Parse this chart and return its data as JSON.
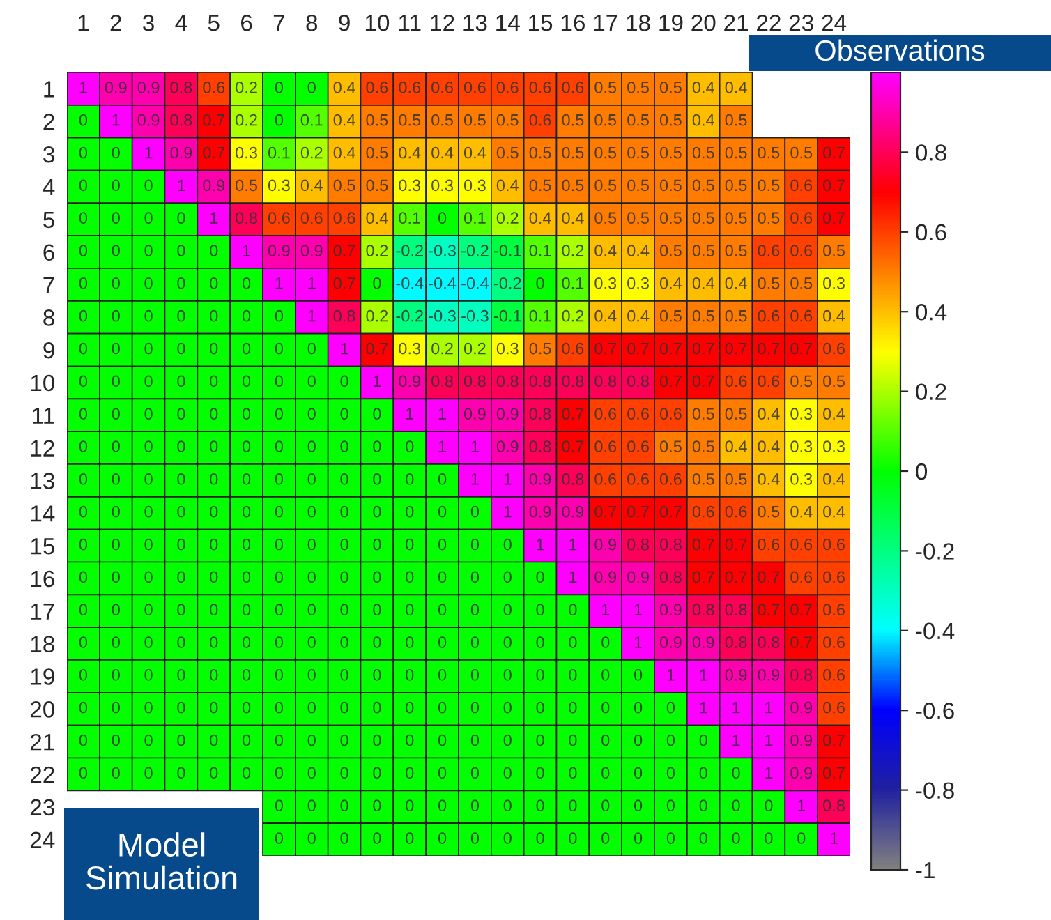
{
  "chart_data": {
    "type": "heatmap",
    "categories": [
      "1",
      "2",
      "3",
      "4",
      "5",
      "6",
      "7",
      "8",
      "9",
      "10",
      "11",
      "12",
      "13",
      "14",
      "15",
      "16",
      "17",
      "18",
      "19",
      "20",
      "21",
      "22",
      "23",
      "24"
    ],
    "y_categories": [
      "1",
      "2",
      "3",
      "4",
      "5",
      "6",
      "7",
      "8",
      "9",
      "10",
      "11",
      "12",
      "13",
      "14",
      "15",
      "16",
      "17",
      "18",
      "19",
      "20",
      "21",
      "22",
      "23",
      "24"
    ],
    "cells": [
      [
        1,
        0.9,
        0.9,
        0.8,
        0.6,
        0.2,
        0,
        0,
        0.4,
        0.6,
        0.6,
        0.6,
        0.6,
        0.6,
        0.6,
        0.6,
        0.5,
        0.5,
        0.5,
        0.4,
        0.4,
        null,
        null,
        null
      ],
      [
        0,
        1,
        0.9,
        0.8,
        0.7,
        0.2,
        0,
        0.1,
        0.4,
        0.5,
        0.5,
        0.5,
        0.5,
        0.5,
        0.6,
        0.5,
        0.5,
        0.5,
        0.5,
        0.4,
        0.5,
        null,
        null,
        null
      ],
      [
        0,
        0,
        1,
        0.9,
        0.7,
        0.3,
        0.1,
        0.2,
        0.4,
        0.5,
        0.4,
        0.4,
        0.4,
        0.5,
        0.5,
        0.5,
        0.5,
        0.5,
        0.5,
        0.5,
        0.5,
        0.5,
        0.5,
        0.7
      ],
      [
        0,
        0,
        0,
        1,
        0.9,
        0.5,
        0.3,
        0.4,
        0.5,
        0.5,
        0.3,
        0.3,
        0.3,
        0.4,
        0.5,
        0.5,
        0.5,
        0.5,
        0.5,
        0.5,
        0.5,
        0.5,
        0.6,
        0.7
      ],
      [
        0,
        0,
        0,
        0,
        1,
        0.8,
        0.6,
        0.6,
        0.6,
        0.4,
        0.1,
        0,
        0.1,
        0.2,
        0.4,
        0.4,
        0.5,
        0.5,
        0.5,
        0.5,
        0.5,
        0.5,
        0.6,
        0.7
      ],
      [
        0,
        0,
        0,
        0,
        0,
        1,
        0.9,
        0.9,
        0.7,
        0.2,
        -0.2,
        -0.3,
        -0.2,
        -0.1,
        0.1,
        0.2,
        0.4,
        0.4,
        0.5,
        0.5,
        0.5,
        0.6,
        0.6,
        0.5
      ],
      [
        0,
        0,
        0,
        0,
        0,
        0,
        1,
        1,
        0.7,
        0,
        -0.4,
        -0.4,
        -0.4,
        -0.2,
        0,
        0.1,
        0.3,
        0.3,
        0.4,
        0.4,
        0.4,
        0.5,
        0.5,
        0.3
      ],
      [
        0,
        0,
        0,
        0,
        0,
        0,
        0,
        1,
        0.8,
        0.2,
        -0.2,
        -0.3,
        -0.3,
        -0.1,
        0.1,
        0.2,
        0.4,
        0.4,
        0.5,
        0.5,
        0.5,
        0.6,
        0.6,
        0.4
      ],
      [
        0,
        0,
        0,
        0,
        0,
        0,
        0,
        0,
        1,
        0.7,
        0.3,
        0.2,
        0.2,
        0.3,
        0.5,
        0.6,
        0.7,
        0.7,
        0.7,
        0.7,
        0.7,
        0.7,
        0.7,
        0.6
      ],
      [
        0,
        0,
        0,
        0,
        0,
        0,
        0,
        0,
        0,
        1,
        0.9,
        0.8,
        0.8,
        0.8,
        0.8,
        0.8,
        0.8,
        0.8,
        0.7,
        0.7,
        0.6,
        0.6,
        0.5,
        0.5
      ],
      [
        0,
        0,
        0,
        0,
        0,
        0,
        0,
        0,
        0,
        0,
        1,
        1,
        0.9,
        0.9,
        0.8,
        0.7,
        0.6,
        0.6,
        0.6,
        0.5,
        0.5,
        0.4,
        0.3,
        0.4
      ],
      [
        0,
        0,
        0,
        0,
        0,
        0,
        0,
        0,
        0,
        0,
        0,
        1,
        1,
        0.9,
        0.8,
        0.7,
        0.6,
        0.6,
        0.5,
        0.5,
        0.4,
        0.4,
        0.3,
        0.3
      ],
      [
        0,
        0,
        0,
        0,
        0,
        0,
        0,
        0,
        0,
        0,
        0,
        0,
        1,
        1,
        0.9,
        0.8,
        0.6,
        0.6,
        0.6,
        0.5,
        0.5,
        0.4,
        0.3,
        0.4
      ],
      [
        0,
        0,
        0,
        0,
        0,
        0,
        0,
        0,
        0,
        0,
        0,
        0,
        0,
        1,
        0.9,
        0.9,
        0.7,
        0.7,
        0.7,
        0.6,
        0.6,
        0.5,
        0.4,
        0.4
      ],
      [
        0,
        0,
        0,
        0,
        0,
        0,
        0,
        0,
        0,
        0,
        0,
        0,
        0,
        0,
        1,
        1,
        0.9,
        0.8,
        0.8,
        0.7,
        0.7,
        0.6,
        0.6,
        0.6
      ],
      [
        0,
        0,
        0,
        0,
        0,
        0,
        0,
        0,
        0,
        0,
        0,
        0,
        0,
        0,
        0,
        1,
        0.9,
        0.9,
        0.8,
        0.7,
        0.7,
        0.7,
        0.6,
        0.6
      ],
      [
        0,
        0,
        0,
        0,
        0,
        0,
        0,
        0,
        0,
        0,
        0,
        0,
        0,
        0,
        0,
        0,
        1,
        1,
        0.9,
        0.8,
        0.8,
        0.7,
        0.7,
        0.6
      ],
      [
        0,
        0,
        0,
        0,
        0,
        0,
        0,
        0,
        0,
        0,
        0,
        0,
        0,
        0,
        0,
        0,
        0,
        1,
        0.9,
        0.9,
        0.8,
        0.8,
        0.7,
        0.6
      ],
      [
        0,
        0,
        0,
        0,
        0,
        0,
        0,
        0,
        0,
        0,
        0,
        0,
        0,
        0,
        0,
        0,
        0,
        0,
        1,
        1,
        0.9,
        0.9,
        0.8,
        0.6
      ],
      [
        0,
        0,
        0,
        0,
        0,
        0,
        0,
        0,
        0,
        0,
        0,
        0,
        0,
        0,
        0,
        0,
        0,
        0,
        0,
        1,
        1,
        1,
        0.9,
        0.6
      ],
      [
        0,
        0,
        0,
        0,
        0,
        0,
        0,
        0,
        0,
        0,
        0,
        0,
        0,
        0,
        0,
        0,
        0,
        0,
        0,
        0,
        1,
        1,
        0.9,
        0.7
      ],
      [
        0,
        0,
        0,
        0,
        0,
        0,
        0,
        0,
        0,
        0,
        0,
        0,
        0,
        0,
        0,
        0,
        0,
        0,
        0,
        0,
        0,
        1,
        0.9,
        0.7
      ],
      [
        null,
        null,
        null,
        null,
        null,
        null,
        0,
        0,
        0,
        0,
        0,
        0,
        0,
        0,
        0,
        0,
        0,
        0,
        0,
        0,
        0,
        0,
        1,
        0.8
      ],
      [
        null,
        null,
        null,
        null,
        null,
        null,
        0,
        0,
        0,
        0,
        0,
        0,
        0,
        0,
        0,
        0,
        0,
        0,
        0,
        0,
        0,
        0,
        0,
        1
      ]
    ],
    "data_labels": true,
    "clim": [
      -1,
      1
    ],
    "cticks": [
      -1,
      -0.8,
      -0.6,
      -0.4,
      -0.2,
      0,
      0.2,
      0.4,
      0.6,
      0.8
    ],
    "annotations": [
      "Observations",
      "Model\nSimulation"
    ]
  }
}
